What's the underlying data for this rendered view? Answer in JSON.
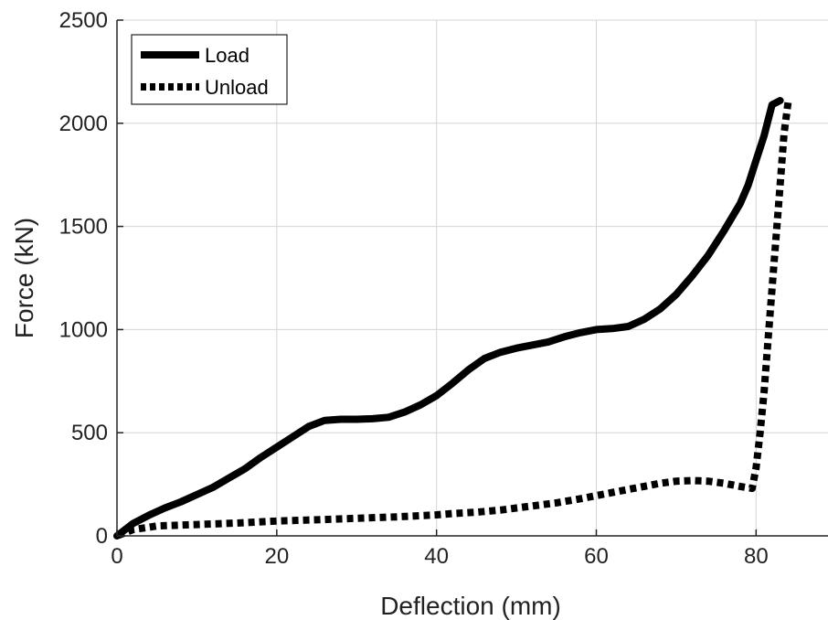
{
  "chart_data": {
    "type": "line",
    "title": "",
    "xlabel": "Deflection (mm)",
    "ylabel": "Force (kN)",
    "xlim": [
      0,
      89
    ],
    "ylim": [
      0,
      2500
    ],
    "xticks": [
      0,
      20,
      40,
      60,
      80
    ],
    "yticks": [
      0,
      500,
      1000,
      1500,
      2000,
      2500
    ],
    "grid": true,
    "legend_position": "top-left",
    "series": [
      {
        "name": "Load",
        "style": "solid",
        "color": "#000000",
        "x": [
          0,
          2,
          4,
          6,
          8,
          10,
          12,
          14,
          16,
          18,
          20,
          22,
          24,
          26,
          28,
          30,
          32,
          34,
          36,
          38,
          40,
          42,
          44,
          46,
          48,
          50,
          52,
          54,
          56,
          58,
          60,
          62,
          64,
          66,
          68,
          70,
          72,
          74,
          76,
          78,
          79,
          80,
          81,
          82,
          83
        ],
        "y": [
          0,
          60,
          100,
          135,
          165,
          200,
          235,
          280,
          325,
          380,
          430,
          480,
          530,
          560,
          565,
          565,
          568,
          575,
          600,
          635,
          680,
          740,
          805,
          860,
          890,
          910,
          925,
          940,
          965,
          985,
          1000,
          1005,
          1015,
          1050,
          1100,
          1170,
          1260,
          1360,
          1480,
          1610,
          1700,
          1820,
          1940,
          2090,
          2110
        ]
      },
      {
        "name": "Unload",
        "style": "dotted",
        "color": "#000000",
        "x": [
          84,
          83.5,
          83,
          82.5,
          82,
          81.5,
          81,
          80.5,
          80,
          79.5,
          78,
          76,
          74,
          72,
          70,
          68,
          66,
          64,
          62,
          60,
          58,
          55,
          52,
          50,
          48,
          45,
          42,
          40,
          35,
          30,
          25,
          20,
          15,
          10,
          5,
          2,
          1,
          0
        ],
        "y": [
          2100,
          1950,
          1700,
          1450,
          1200,
          950,
          700,
          500,
          330,
          230,
          240,
          255,
          265,
          268,
          265,
          255,
          240,
          225,
          210,
          195,
          180,
          160,
          145,
          135,
          125,
          115,
          108,
          102,
          92,
          85,
          78,
          72,
          62,
          55,
          48,
          30,
          15,
          0
        ]
      }
    ]
  }
}
